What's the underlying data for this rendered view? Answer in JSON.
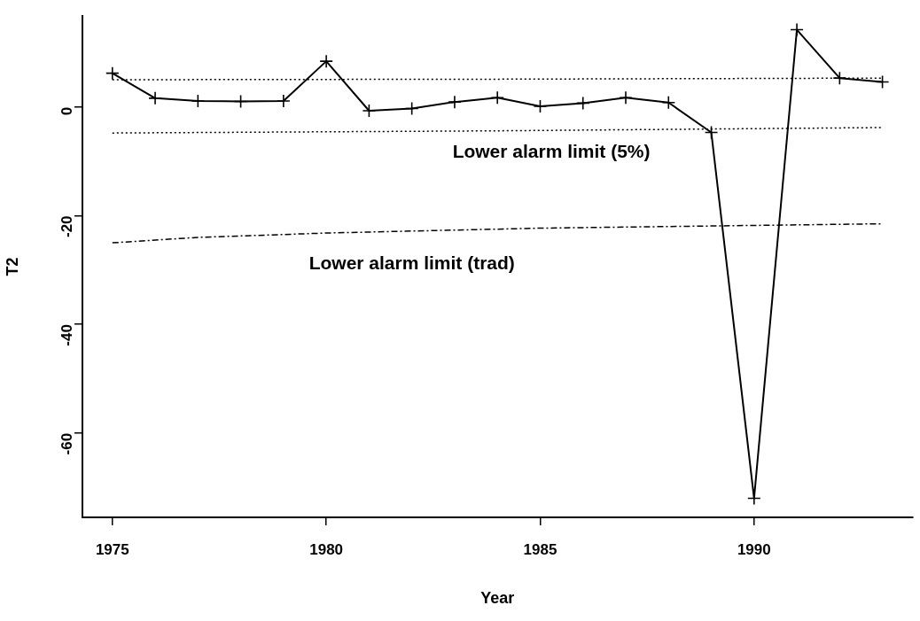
{
  "chart_data": {
    "type": "line",
    "xlabel": "Year",
    "ylabel": "T2",
    "x": [
      1975,
      1976,
      1977,
      1978,
      1979,
      1980,
      1981,
      1982,
      1983,
      1984,
      1985,
      1986,
      1987,
      1988,
      1989,
      1990,
      1991,
      1992,
      1993
    ],
    "series": [
      {
        "color": "#000000",
        "marker": "cross",
        "line_style": "solid",
        "values": [
          6.2,
          1.6,
          1.1,
          1.0,
          1.1,
          8.4,
          -0.7,
          -0.3,
          0.9,
          1.7,
          0.1,
          0.7,
          1.7,
          0.8,
          -4.7,
          -72,
          14.2,
          5.3,
          4.6
        ]
      },
      {
        "color": "#000000",
        "marker": "none",
        "line_style": "dotted",
        "x": [
          1975,
          1984,
          1993
        ],
        "values": [
          5.0,
          5.1,
          5.3
        ]
      },
      {
        "color": "#000000",
        "marker": "none",
        "line_style": "dotted",
        "x": [
          1975,
          1984,
          1993
        ],
        "values": [
          -4.8,
          -4.4,
          -3.8
        ]
      },
      {
        "color": "#000000",
        "marker": "none",
        "line_style": "dashed",
        "x": [
          1975,
          1977,
          1980,
          1985,
          1990,
          1993
        ],
        "values": [
          -25,
          -24,
          -23.2,
          -22.3,
          -21.8,
          -21.5
        ]
      }
    ],
    "xlim": [
      1974.3,
      1993.7
    ],
    "ylim": [
      -75.5,
      16.7
    ],
    "xticks": [
      1975,
      1980,
      1985,
      1990
    ],
    "yticks": [
      -60,
      -40,
      -20,
      0
    ],
    "grid": false,
    "legend": false,
    "annotations": [
      "Lower alarm limit (5%)",
      "Lower alarm limit (trad)"
    ]
  }
}
